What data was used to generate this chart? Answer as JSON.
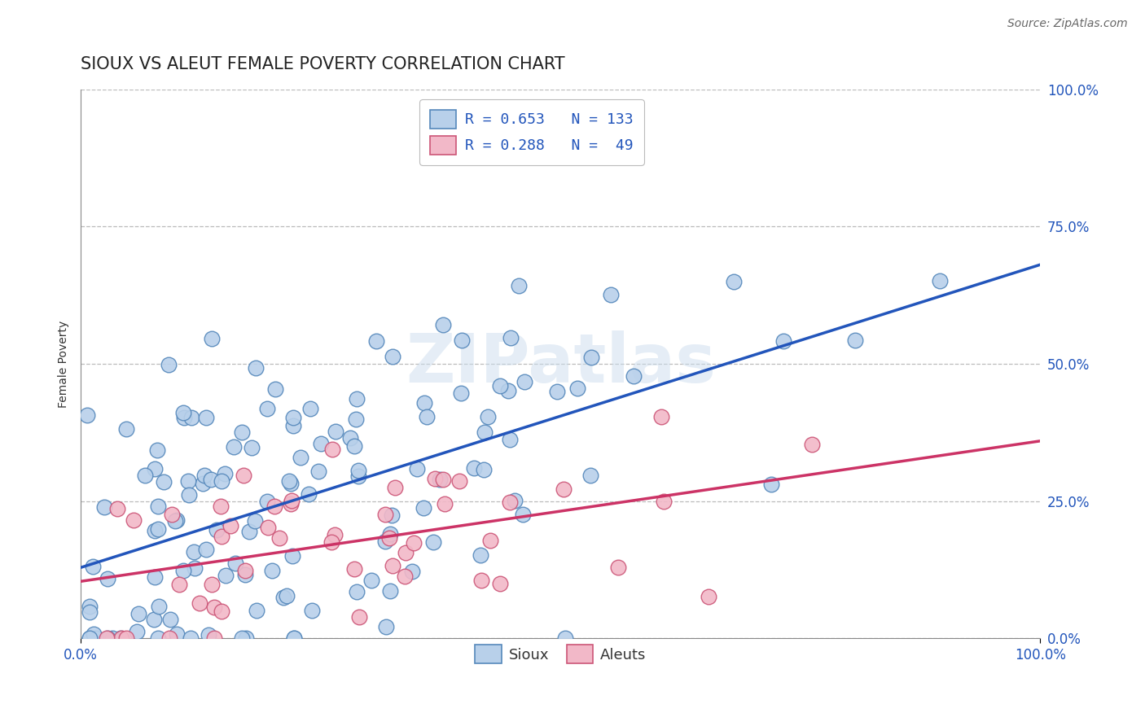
{
  "title": "SIOUX VS ALEUT FEMALE POVERTY CORRELATION CHART",
  "source": "Source: ZipAtlas.com",
  "ylabel": "Female Poverty",
  "xlim": [
    0.0,
    1.0
  ],
  "ylim": [
    0.0,
    1.0
  ],
  "xtick_labels": [
    "0.0%",
    "100.0%"
  ],
  "ytick_labels": [
    "0.0%",
    "25.0%",
    "50.0%",
    "75.0%",
    "100.0%"
  ],
  "ytick_positions": [
    0.0,
    0.25,
    0.5,
    0.75,
    1.0
  ],
  "sioux_color": "#b8d0ea",
  "sioux_edge_color": "#5588bb",
  "aleut_color": "#f2b8c8",
  "aleut_edge_color": "#cc5577",
  "sioux_line_color": "#2255bb",
  "aleut_line_color": "#cc3366",
  "background_color": "#ffffff",
  "grid_color": "#bbbbbb",
  "watermark_text": "ZIPatlas",
  "sioux_R": 0.653,
  "sioux_N": 133,
  "aleut_R": 0.288,
  "aleut_N": 49,
  "title_fontsize": 15,
  "label_fontsize": 10,
  "tick_fontsize": 12,
  "legend_fontsize": 13,
  "source_fontsize": 10
}
